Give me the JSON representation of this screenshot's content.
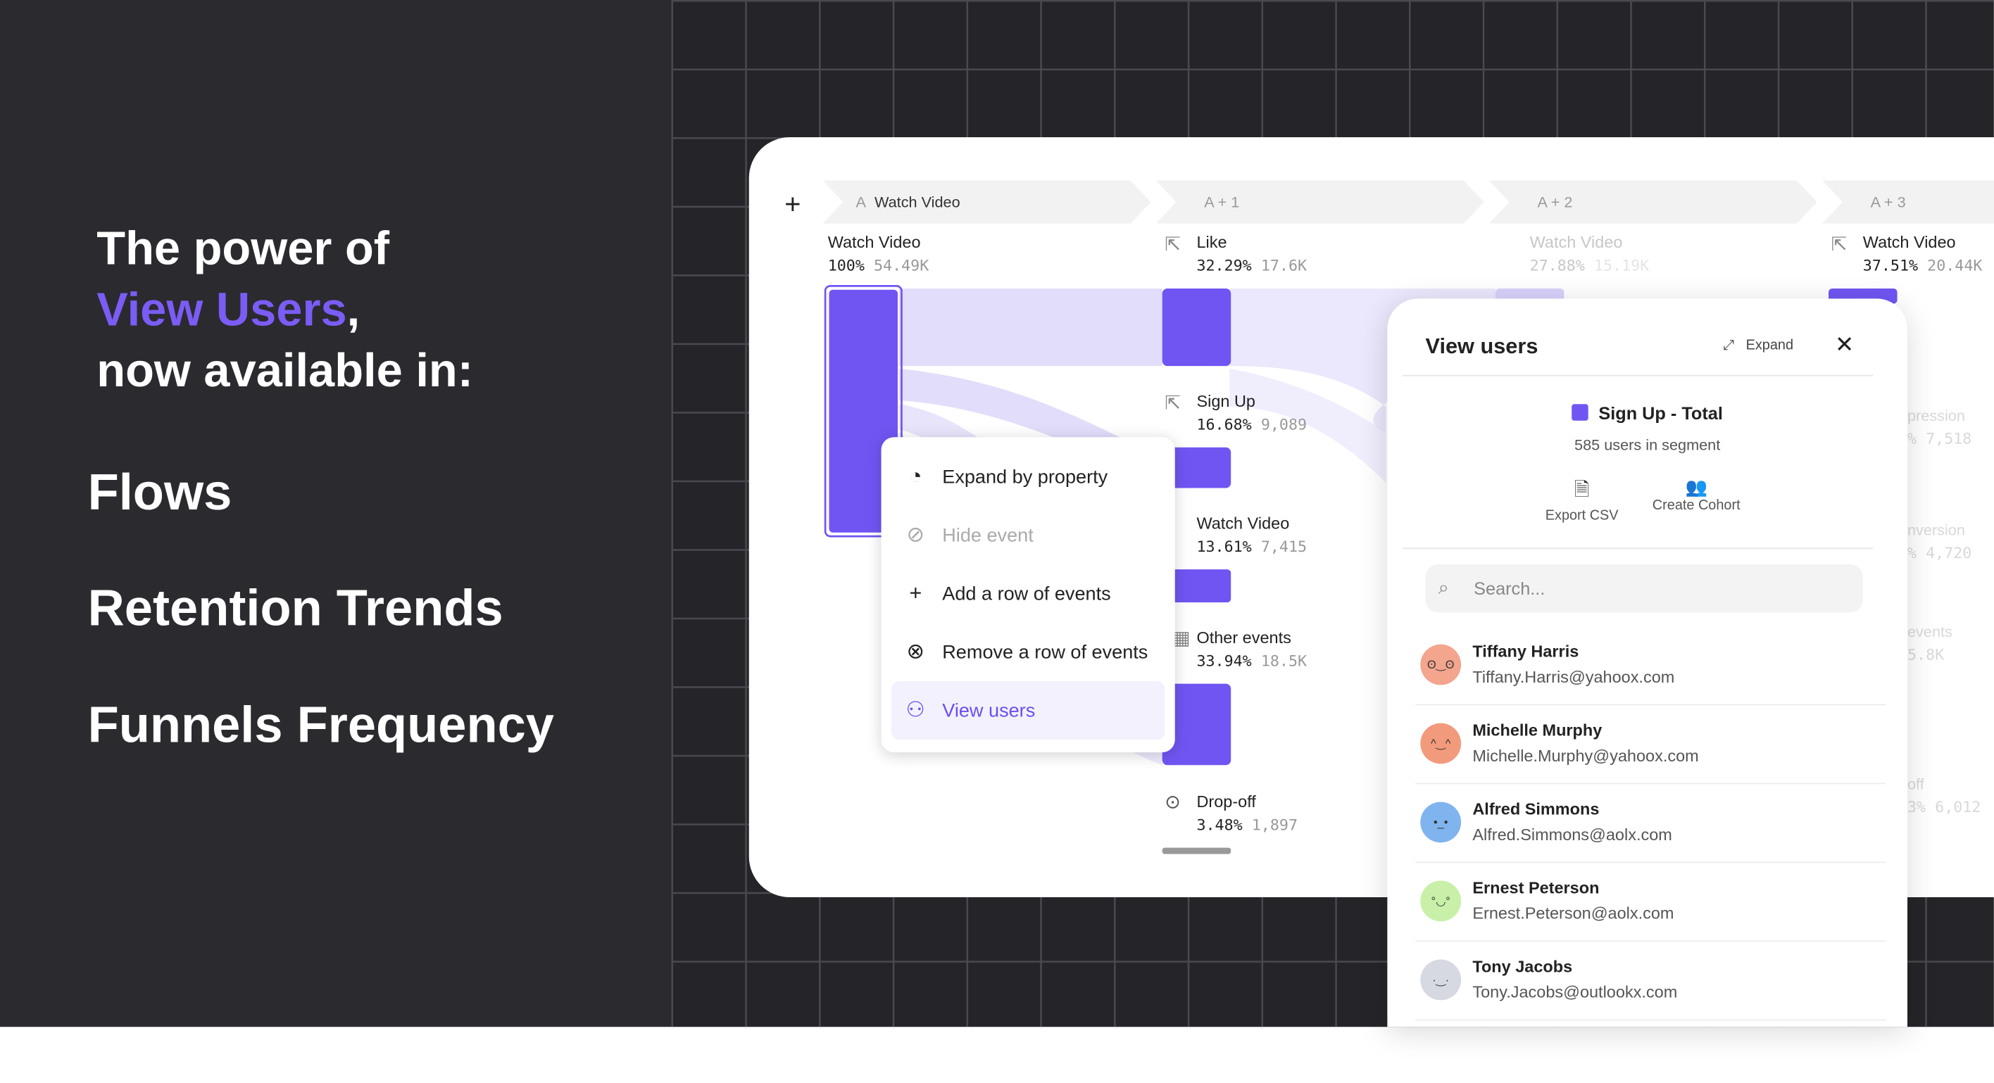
{
  "headline": {
    "line1": "The power of",
    "accent": "View Users",
    "comma": ",",
    "line3": "now available in:"
  },
  "features": [
    "Flows",
    "Retention Trends",
    "Funnels Frequency"
  ],
  "colors": {
    "accent": "#7155f3",
    "flow": "#e2ddfb",
    "dark": "#2b2a2f"
  },
  "flows": {
    "add_icon": "plus-icon",
    "steps": [
      {
        "prefix": "A",
        "label": "Watch Video"
      },
      {
        "label": "A + 1"
      },
      {
        "label": "A + 2"
      },
      {
        "label": "A + 3"
      }
    ],
    "nodes": [
      {
        "name": "Watch Video",
        "pct": "100%",
        "count": "54.49K"
      },
      {
        "name": "Like",
        "pct": "32.29%",
        "count": "17.6K"
      },
      {
        "name": "Sign Up",
        "pct": "16.68%",
        "count": "9,089"
      },
      {
        "name": "Watch Video",
        "pct": "13.61%",
        "count": "7,415"
      },
      {
        "name": "Other events",
        "pct": "33.94%",
        "count": "18.5K"
      },
      {
        "name": "Drop-off",
        "pct": "3.48%",
        "count": "1,897"
      },
      {
        "name": "Watch Video",
        "pct": "27.88%",
        "count": "15.19K"
      },
      {
        "name": "Watch Video",
        "pct": "37.51%",
        "count": "20.44K"
      }
    ],
    "ghost": [
      {
        "name": "pression",
        "v": "% 7,518"
      },
      {
        "name": "nversion",
        "v": "% 4,720"
      },
      {
        "name": "events",
        "v": "5.8K"
      },
      {
        "name": "off",
        "v": "3% 6,012"
      }
    ]
  },
  "menu": {
    "items": [
      {
        "label": "Expand by property",
        "icon": "pie-chart-icon"
      },
      {
        "label": "Hide event",
        "icon": "eye-off-icon",
        "disabled": true
      },
      {
        "label": "Add a row of events",
        "icon": "plus-icon"
      },
      {
        "label": "Remove a row of events",
        "icon": "remove-circle-icon"
      },
      {
        "label": "View users",
        "icon": "users-icon",
        "selected": true
      }
    ]
  },
  "panel": {
    "title": "View users",
    "expand": "Expand",
    "segment": "Sign Up - Total",
    "segment_count": "585 users in segment",
    "export": "Export CSV",
    "cohort": "Create Cohort",
    "search_placeholder": "Search...",
    "users": [
      {
        "name": "Tiffany Harris",
        "email": "Tiffany.Harris@yahoox.com",
        "color": "#f3a58d"
      },
      {
        "name": "Michelle Murphy",
        "email": "Michelle.Murphy@yahoox.com",
        "color": "#f29a7c"
      },
      {
        "name": "Alfred Simmons",
        "email": "Alfred.Simmons@aolx.com",
        "color": "#7fb4ef"
      },
      {
        "name": "Ernest Peterson",
        "email": "Ernest.Peterson@aolx.com",
        "color": "#c8f0a8"
      },
      {
        "name": "Tony Jacobs",
        "email": "Tony.Jacobs@outlookx.com",
        "color": "#d6d8e2"
      }
    ]
  }
}
